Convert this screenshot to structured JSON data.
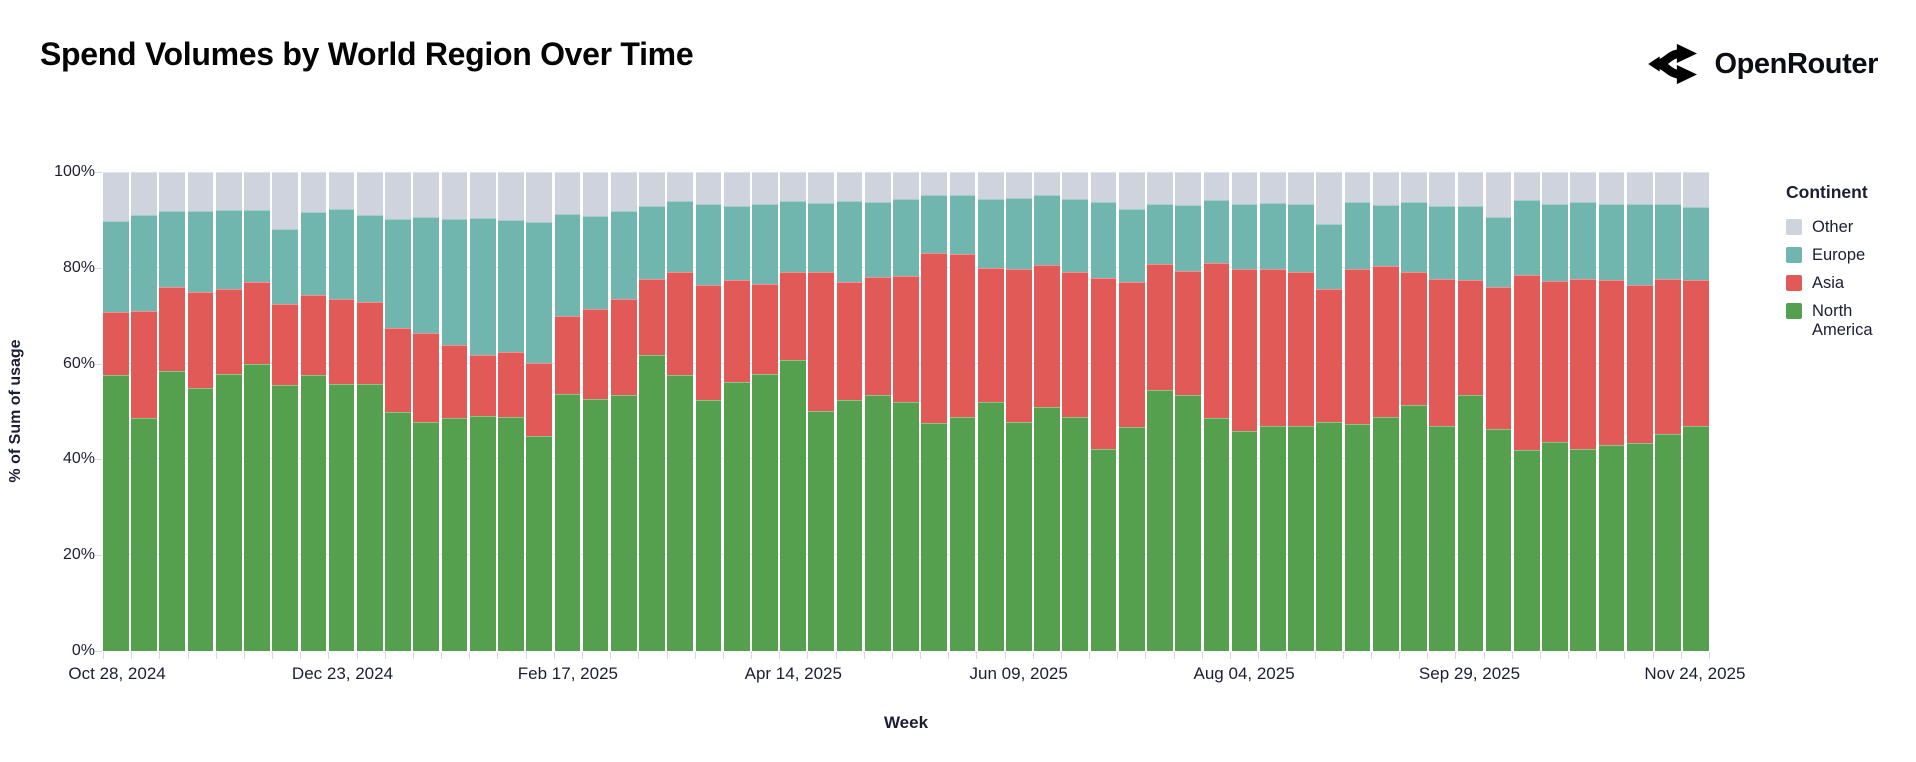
{
  "header": {
    "title": "Spend Volumes by World Region Over Time",
    "brand": "OpenRouter"
  },
  "chart_data": {
    "type": "bar",
    "stacked": true,
    "normalized": true,
    "title": "Spend Volumes by World Region Over Time",
    "xlabel": "Week",
    "ylabel": "% of Sum of usage",
    "ylim": [
      0,
      100
    ],
    "y_ticks": [
      0,
      20,
      40,
      60,
      80,
      100
    ],
    "y_tick_suffix": "%",
    "grid": true,
    "legend_title": "Continent",
    "legend_position": "right",
    "legend_order": [
      "Other",
      "Europe",
      "Asia",
      "North America"
    ],
    "x_tick_indices": [
      0,
      8,
      16,
      24,
      32,
      40,
      48,
      56
    ],
    "x_tick_labels": [
      "Oct 28, 2024",
      "Dec 23, 2024",
      "Feb 17, 2025",
      "Apr 14, 2025",
      "Jun 09, 2025",
      "Aug 04, 2025",
      "Sep 29, 2025",
      "Nov 24, 2025"
    ],
    "categories": [
      "Oct 28, 2024",
      "Nov 04, 2024",
      "Nov 11, 2024",
      "Nov 18, 2024",
      "Nov 25, 2024",
      "Dec 02, 2024",
      "Dec 09, 2024",
      "Dec 16, 2024",
      "Dec 23, 2024",
      "Dec 30, 2024",
      "Jan 06, 2025",
      "Jan 13, 2025",
      "Jan 20, 2025",
      "Jan 27, 2025",
      "Feb 03, 2025",
      "Feb 10, 2025",
      "Feb 17, 2025",
      "Feb 24, 2025",
      "Mar 03, 2025",
      "Mar 10, 2025",
      "Mar 17, 2025",
      "Mar 24, 2025",
      "Mar 31, 2025",
      "Apr 07, 2025",
      "Apr 14, 2025",
      "Apr 21, 2025",
      "Apr 28, 2025",
      "May 05, 2025",
      "May 12, 2025",
      "May 19, 2025",
      "May 26, 2025",
      "Jun 02, 2025",
      "Jun 09, 2025",
      "Jun 16, 2025",
      "Jun 23, 2025",
      "Jun 30, 2025",
      "Jul 07, 2025",
      "Jul 14, 2025",
      "Jul 21, 2025",
      "Jul 28, 2025",
      "Aug 04, 2025",
      "Aug 11, 2025",
      "Aug 18, 2025",
      "Aug 25, 2025",
      "Sep 01, 2025",
      "Sep 08, 2025",
      "Sep 15, 2025",
      "Sep 22, 2025",
      "Sep 29, 2025",
      "Oct 06, 2025",
      "Oct 13, 2025",
      "Oct 20, 2025",
      "Oct 27, 2025",
      "Nov 03, 2025",
      "Nov 10, 2025",
      "Nov 17, 2025",
      "Nov 24, 2025"
    ],
    "series": [
      {
        "name": "North America",
        "color": "#54a04e",
        "values": [
          57.6,
          48.6,
          58.5,
          54.8,
          57.8,
          59.9,
          55.5,
          57.6,
          55.7,
          55.7,
          49.8,
          47.9,
          48.6,
          49.0,
          48.8,
          44.9,
          53.7,
          52.6,
          53.4,
          61.8,
          57.6,
          52.3,
          56.2,
          57.8,
          60.8,
          50.0,
          52.3,
          53.5,
          51.9,
          47.6,
          48.8,
          51.9,
          47.9,
          50.9,
          48.8,
          42.2,
          46.7,
          54.4,
          53.5,
          48.6,
          46.0,
          46.9,
          47.0,
          47.9,
          47.4,
          48.8,
          51.4,
          46.9,
          53.4,
          46.3,
          42.0,
          43.7,
          42.2,
          43.0,
          43.4,
          45.3,
          46.9
        ]
      },
      {
        "name": "Asia",
        "color": "#e25a57",
        "values": [
          13.1,
          22.3,
          17.5,
          20.1,
          17.8,
          17.2,
          17.0,
          16.8,
          17.8,
          17.1,
          17.6,
          18.5,
          15.3,
          12.7,
          13.6,
          15.2,
          16.3,
          18.7,
          20.1,
          15.9,
          21.6,
          24.1,
          21.2,
          18.9,
          18.4,
          29.1,
          24.8,
          24.6,
          26.4,
          35.5,
          34.1,
          28.0,
          31.9,
          29.7,
          30.4,
          35.6,
          30.3,
          26.4,
          25.9,
          32.5,
          33.8,
          32.8,
          32.2,
          27.7,
          32.4,
          31.6,
          27.8,
          30.8,
          24.1,
          29.7,
          36.4,
          33.6,
          35.4,
          34.4,
          33.0,
          32.3,
          30.5
        ]
      },
      {
        "name": "Europe",
        "color": "#70b6ae",
        "values": [
          19.0,
          20.2,
          15.8,
          16.9,
          16.4,
          14.9,
          15.7,
          17.2,
          18.7,
          18.3,
          22.8,
          24.2,
          26.2,
          28.7,
          27.5,
          29.4,
          21.3,
          19.5,
          18.3,
          15.2,
          14.7,
          17.0,
          15.6,
          16.7,
          14.7,
          14.5,
          16.8,
          15.6,
          16.0,
          12.2,
          12.2,
          14.5,
          14.8,
          14.5,
          15.1,
          15.9,
          15.2,
          12.6,
          13.8,
          13.0,
          13.6,
          13.9,
          14.2,
          13.6,
          14.0,
          12.8,
          14.5,
          15.3,
          15.4,
          14.6,
          15.7,
          16.0,
          16.1,
          16.0,
          17.0,
          15.8,
          15.3
        ]
      },
      {
        "name": "Other",
        "color": "#ced3dd",
        "values": [
          10.3,
          8.9,
          8.2,
          8.2,
          8.0,
          8.0,
          11.8,
          8.4,
          7.8,
          8.9,
          9.8,
          9.4,
          9.9,
          9.6,
          10.1,
          10.5,
          8.7,
          9.2,
          8.2,
          7.1,
          6.1,
          6.6,
          7.0,
          6.6,
          6.1,
          6.4,
          6.1,
          6.3,
          5.7,
          4.7,
          4.9,
          5.6,
          5.4,
          4.9,
          5.7,
          6.3,
          7.8,
          6.6,
          6.8,
          5.9,
          6.6,
          6.4,
          6.6,
          10.8,
          6.2,
          6.8,
          6.3,
          7.0,
          7.1,
          9.4,
          5.9,
          6.7,
          6.3,
          6.6,
          6.6,
          6.6,
          7.3
        ]
      }
    ]
  }
}
